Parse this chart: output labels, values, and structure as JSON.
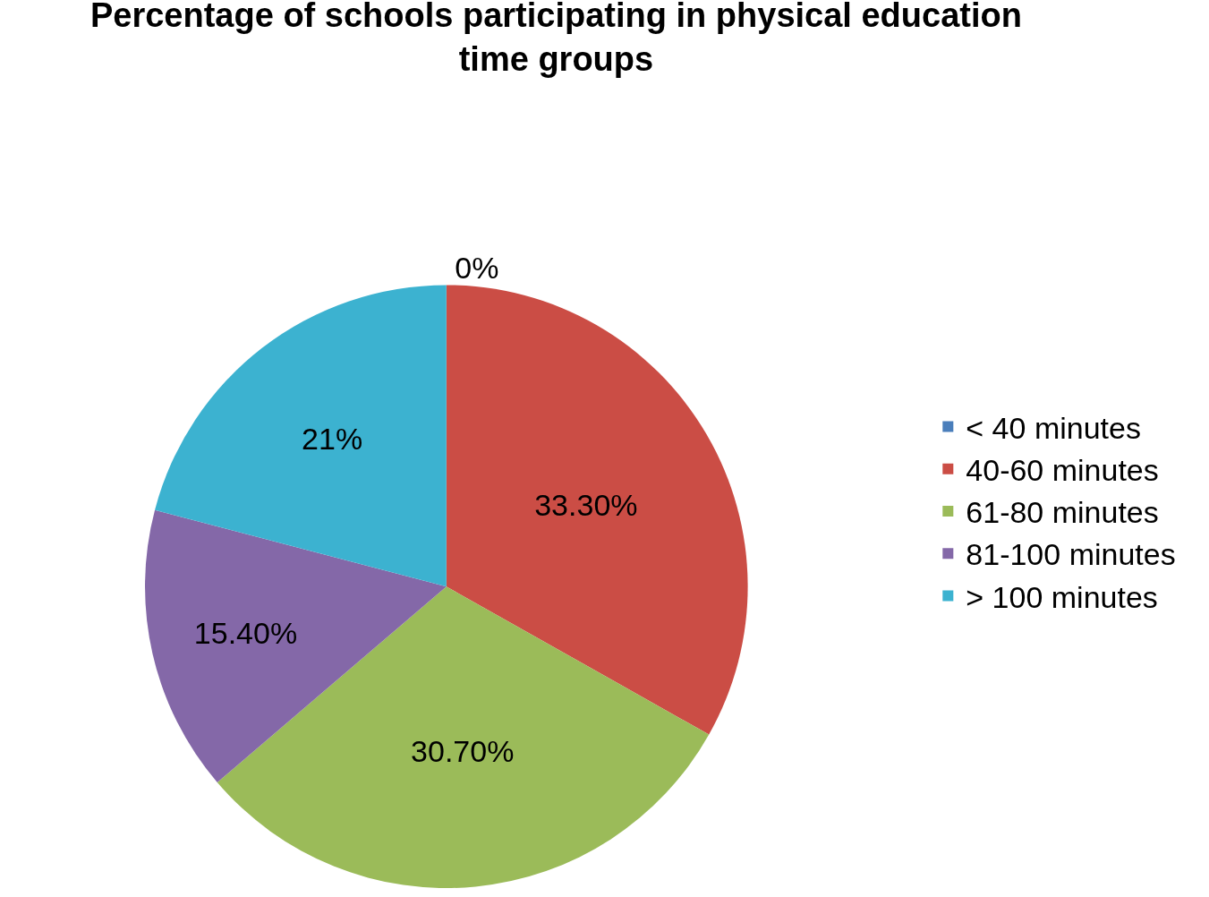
{
  "chart_data": {
    "type": "pie",
    "title": "Percentage of schools participating in physical education\ntime groups",
    "categories": [
      "< 40 minutes",
      "40-60 minutes",
      "61-80 minutes",
      "81-100 minutes",
      "> 100 minutes"
    ],
    "values": [
      0,
      33.3,
      30.7,
      15.4,
      21
    ],
    "value_labels": [
      "0%",
      "33.30%",
      "30.70%",
      "15.40%",
      "21%"
    ],
    "colors": [
      "#4a7ebb",
      "#cb4d45",
      "#9bbb59",
      "#8468a8",
      "#3cb2d0"
    ],
    "legend": "right"
  }
}
